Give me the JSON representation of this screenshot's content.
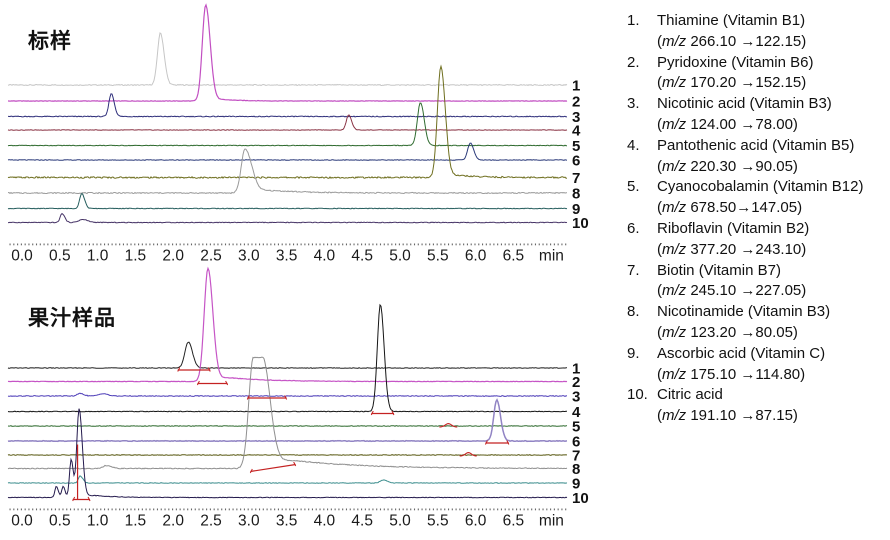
{
  "figure": {
    "background": "#ffffff",
    "marker_color": "#c42222"
  },
  "chart_data": [
    {
      "type": "line",
      "title": "标样",
      "xlabel": "min",
      "x_range": [
        0,
        6.5
      ],
      "x_tick_step": 0.5,
      "x_ticks": [
        "0.0",
        "0.5",
        "1.0",
        "1.5",
        "2.0",
        "2.5",
        "3.0",
        "3.5",
        "4.0",
        "4.5",
        "5.0",
        "5.5",
        "6.0",
        "6.5",
        "min"
      ],
      "traces": [
        {
          "num": "1",
          "color": "#c6c6c6",
          "noise": 0.5,
          "peaks": [
            {
              "t": 1.83,
              "h": 52,
              "sl": 0.038,
              "sr": 0.05
            }
          ]
        },
        {
          "num": "2",
          "color": "#c24fc2",
          "w": 1.2,
          "noise": 0.25,
          "peaks": [
            {
              "t": 2.43,
              "h": 96,
              "sl": 0.045,
              "sr": 0.06,
              "tailA": 4,
              "tailL": 0.25
            }
          ]
        },
        {
          "num": "3",
          "color": "#2e2e7a",
          "noise": 0.45,
          "peaks": [
            {
              "t": 1.18,
              "h": 23,
              "sl": 0.03,
              "sr": 0.04
            }
          ]
        },
        {
          "num": "4",
          "color": "#8a3344",
          "noise": 0.25,
          "peaks": [
            {
              "t": 4.32,
              "h": 15,
              "sl": 0.03,
              "sr": 0.04
            }
          ]
        },
        {
          "num": "5",
          "color": "#2f6b2f",
          "noise": 0.3,
          "peaks": [
            {
              "t": 5.27,
              "h": 43,
              "sl": 0.04,
              "sr": 0.05
            }
          ]
        },
        {
          "num": "6",
          "color": "#2b3a7a",
          "noise": 0.3,
          "peaks": [
            {
              "t": 5.93,
              "h": 17,
              "sl": 0.035,
              "sr": 0.045
            }
          ]
        },
        {
          "num": "7",
          "color": "#6e6e1e",
          "noise": 0.75,
          "peaks": [
            {
              "t": 5.54,
              "h": 111,
              "sl": 0.045,
              "sr": 0.06,
              "tailA": 5,
              "tailL": 0.3
            }
          ]
        },
        {
          "num": "8",
          "color": "#9a9a9a",
          "noise": 0.55,
          "peaks": [
            {
              "t": 2.95,
              "h": 44,
              "sl": 0.05,
              "sr": 0.09,
              "tailA": 6,
              "tailL": 0.45
            }
          ]
        },
        {
          "num": "9",
          "color": "#265e5e",
          "noise": 0.35,
          "peaks": [
            {
              "t": 0.79,
              "h": 15,
              "sl": 0.028,
              "sr": 0.038
            }
          ]
        },
        {
          "num": "10",
          "color": "#463366",
          "noise": 0.35,
          "peaks": [
            {
              "t": 0.53,
              "h": 9,
              "sl": 0.025,
              "sr": 0.035
            },
            {
              "t": 0.8,
              "h": 3,
              "sl": 0.05,
              "sr": 0.07
            }
          ]
        }
      ]
    },
    {
      "type": "line",
      "title": "果汁样品",
      "xlabel": "min",
      "x_range": [
        0,
        6.5
      ],
      "x_tick_step": 0.5,
      "x_ticks": [
        "0.0",
        "0.5",
        "1.0",
        "1.5",
        "2.0",
        "2.5",
        "3.0",
        "3.5",
        "4.0",
        "4.5",
        "5.0",
        "5.5",
        "6.0",
        "6.5",
        "min"
      ],
      "traces": [
        {
          "num": "1",
          "color": "#222222",
          "noise": 0.3,
          "peaks": [
            {
              "t": 2.2,
              "h": 26,
              "sl": 0.045,
              "sr": 0.055
            }
          ],
          "marks": [
            {
              "kind": "base",
              "t1": 2.06,
              "t2": 2.49
            }
          ]
        },
        {
          "num": "2",
          "color": "#c655c6",
          "w": 1.2,
          "noise": 0.25,
          "peaks": [
            {
              "t": 2.46,
              "h": 113,
              "sl": 0.05,
              "sr": 0.065,
              "tailA": 7,
              "tailL": 0.5
            }
          ],
          "marks": [
            {
              "kind": "base",
              "t1": 2.32,
              "t2": 2.72
            }
          ]
        },
        {
          "num": "3",
          "color": "#4d3db8",
          "noise": 0.4,
          "peaks": [
            {
              "t": 0.77,
              "h": 2.5,
              "sl": 0.04,
              "sr": 0.05
            },
            {
              "t": 1.07,
              "h": 2.5,
              "sl": 0.05,
              "sr": 0.06
            }
          ],
          "marks": [
            {
              "kind": "base",
              "t1": 2.98,
              "t2": 3.5
            }
          ]
        },
        {
          "num": "4",
          "color": "#151515",
          "noise": 0.3,
          "peaks": [
            {
              "t": 4.74,
              "h": 107,
              "sl": 0.04,
              "sr": 0.05
            }
          ],
          "marks": [
            {
              "kind": "base",
              "t1": 4.62,
              "t2": 4.92
            }
          ]
        },
        {
          "num": "5",
          "color": "#2f6b2f",
          "noise": 0.3,
          "peaks": [],
          "marks": [
            {
              "kind": "bump",
              "t1": 5.52,
              "t2": 5.76
            }
          ]
        },
        {
          "num": "6",
          "color": "#9184c4",
          "w": 1.5,
          "noise": 0.3,
          "peaks": [
            {
              "t": 6.28,
              "h": 41,
              "sl": 0.04,
              "sr": 0.05
            }
          ],
          "marks": [
            {
              "kind": "base",
              "t1": 6.13,
              "t2": 6.44
            }
          ]
        },
        {
          "num": "7",
          "color": "#5a5a14",
          "noise": 0.35,
          "peaks": [],
          "marks": [
            {
              "kind": "bump",
              "t1": 5.79,
              "t2": 6.02
            }
          ]
        },
        {
          "num": "8",
          "color": "#8f8f8f",
          "noise": 0.45,
          "peaks": [
            {
              "t": 3.12,
              "h": 111,
              "sl": 0.06,
              "sr": 0.1,
              "flat": 0.06,
              "tailA": 14,
              "tailL": 0.9
            },
            {
              "t": 1.12,
              "h": 3,
              "sl": 0.05,
              "sr": 0.06
            }
          ],
          "marks": [
            {
              "kind": "base",
              "t1": 3.02,
              "t2": 3.62,
              "y1o": 1,
              "y2o": -6
            }
          ]
        },
        {
          "num": "9",
          "color": "#3f8f8f",
          "noise": 0.3,
          "peaks": [
            {
              "t": 0.77,
              "h": 7,
              "sl": 0.025,
              "sr": 0.035
            },
            {
              "t": 4.78,
              "h": 3,
              "sl": 0.04,
              "sr": 0.05
            }
          ]
        },
        {
          "num": "10",
          "color": "#241a4d",
          "noise": 0.3,
          "peaks": [
            {
              "t": 0.455,
              "h": 11,
              "sl": 0.02,
              "sr": 0.025
            },
            {
              "t": 0.545,
              "h": 11,
              "sl": 0.02,
              "sr": 0.025
            },
            {
              "t": 0.65,
              "h": 38,
              "sl": 0.022,
              "sr": 0.028
            },
            {
              "t": 0.755,
              "h": 89,
              "sl": 0.03,
              "sr": 0.042,
              "tailA": 4,
              "tailL": 0.3
            }
          ],
          "marks": [
            {
              "kind": "base",
              "t1": 0.67,
              "t2": 0.9
            },
            {
              "kind": "drop",
              "t": 0.735,
              "h": 55
            }
          ]
        }
      ]
    }
  ],
  "legend": {
    "items": [
      {
        "num": "1.",
        "name": "Thiamine (Vitamin B1)",
        "mz_pre": "(",
        "mz_italic": "m/z",
        "mz_rest": " 266.10 →122.15)"
      },
      {
        "num": "2.",
        "name": "Pyridoxine (Vitamin B6)",
        "mz_pre": "(",
        "mz_italic": "m/z",
        "mz_rest": " 170.20 →152.15)"
      },
      {
        "num": "3.",
        "name": "Nicotinic acid (Vitamin B3)",
        "mz_pre": "(",
        "mz_italic": "m/z",
        "mz_rest": " 124.00 →78.00)"
      },
      {
        "num": "4.",
        "name": "Pantothenic acid (Vitamin B5)",
        "mz_pre": "(",
        "mz_italic": "m/z",
        "mz_rest": " 220.30 →90.05)"
      },
      {
        "num": "5.",
        "name": "Cyanocobalamin  (Vitamin B12)",
        "mz_pre": "(",
        "mz_italic": "m/z",
        "mz_rest": " 678.50→147.05)"
      },
      {
        "num": "6.",
        "name": "Riboflavin (Vitamin B2)",
        "mz_pre": "(",
        "mz_italic": "m/z",
        "mz_rest": " 377.20 →243.10)"
      },
      {
        "num": "7.",
        "name": "Biotin (Vitamin B7)",
        "mz_pre": "(",
        "mz_italic": "m/z",
        "mz_rest": " 245.10 →227.05)"
      },
      {
        "num": "8.",
        "name": "Nicotinamide (Vitamin B3)",
        "mz_pre": "(",
        "mz_italic": "m/z",
        "mz_rest": " 123.20 →80.05)"
      },
      {
        "num": "9.",
        "name": "Ascorbic acid (Vitamin C)",
        "mz_pre": "(",
        "mz_italic": "m/z",
        "mz_rest": " 175.10 →114.80)"
      },
      {
        "num": "10.",
        "name": "Citric acid",
        "mz_pre": "(",
        "mz_italic": "m/z",
        "mz_rest": " 191.10 →87.15)"
      }
    ]
  }
}
